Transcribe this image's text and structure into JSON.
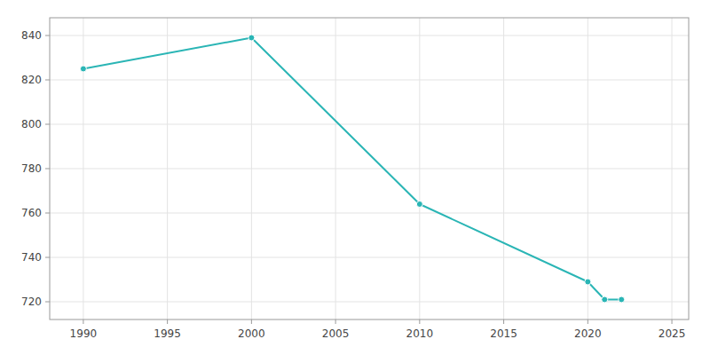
{
  "chart_data": {
    "type": "line",
    "x": [
      1990,
      2000,
      2010,
      2020,
      2021,
      2022
    ],
    "values": [
      825,
      839,
      764,
      729,
      721,
      721
    ],
    "color": "#2ab5b5",
    "marker": "circle",
    "xlim": [
      1988,
      2026
    ],
    "ylim": [
      712,
      848
    ],
    "xticks": [
      1990,
      1995,
      2000,
      2005,
      2010,
      2015,
      2020,
      2025
    ],
    "yticks": [
      720,
      740,
      760,
      780,
      800,
      820,
      840
    ],
    "grid": true
  }
}
